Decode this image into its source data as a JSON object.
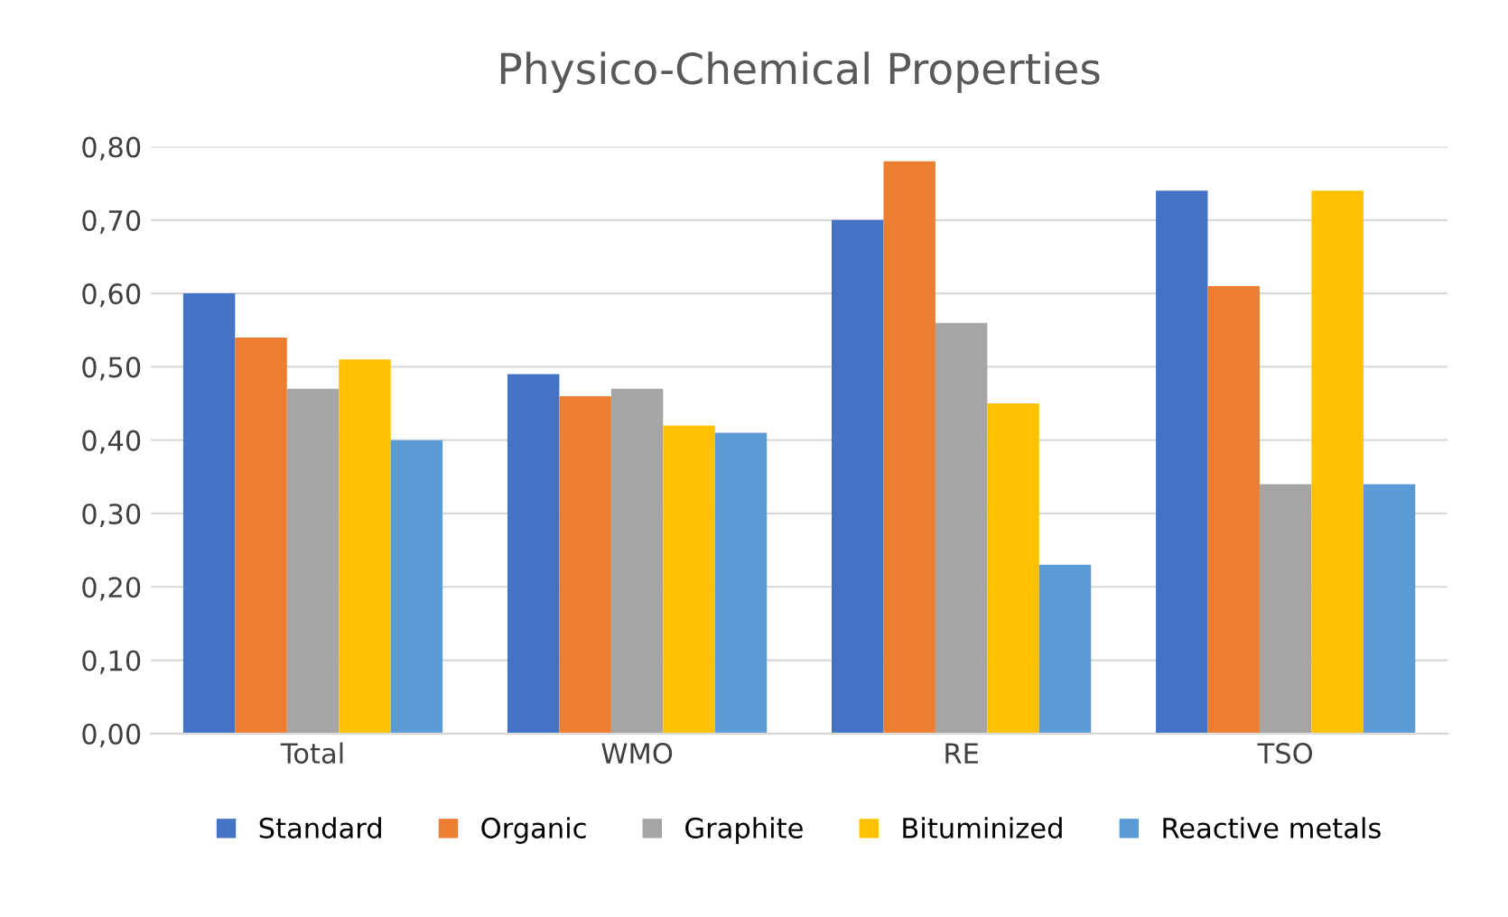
{
  "chart_data": {
    "type": "bar",
    "title": "Physico-Chemical Properties",
    "categories": [
      "Total",
      "WMO",
      "RE",
      "TSO"
    ],
    "series": [
      {
        "name": "Standard",
        "color": "#4472c4",
        "values": [
          0.6,
          0.49,
          0.7,
          0.74
        ]
      },
      {
        "name": "Organic",
        "color": "#ed7d31",
        "values": [
          0.54,
          0.46,
          0.78,
          0.61
        ]
      },
      {
        "name": "Graphite",
        "color": "#a5a5a5",
        "values": [
          0.47,
          0.47,
          0.56,
          0.34
        ]
      },
      {
        "name": "Bituminized",
        "color": "#ffc000",
        "values": [
          0.51,
          0.42,
          0.45,
          0.74
        ]
      },
      {
        "name": "Reactive metals",
        "color": "#5b9bd5",
        "values": [
          0.4,
          0.41,
          0.23,
          0.34
        ]
      }
    ],
    "ylim": [
      0,
      0.8
    ],
    "yticks": [
      {
        "value": 0,
        "label": "0,00"
      },
      {
        "value": 0.1,
        "label": "0,10"
      },
      {
        "value": 0.2,
        "label": "0,20"
      },
      {
        "value": 0.3,
        "label": "0,30"
      },
      {
        "value": 0.4,
        "label": "0,40"
      },
      {
        "value": 0.5,
        "label": "0,50"
      },
      {
        "value": 0.6,
        "label": "0,60"
      },
      {
        "value": 0.7,
        "label": "0,70"
      },
      {
        "value": 0.8,
        "label": "0,80"
      }
    ],
    "grid": "y",
    "legend": "bottom"
  }
}
